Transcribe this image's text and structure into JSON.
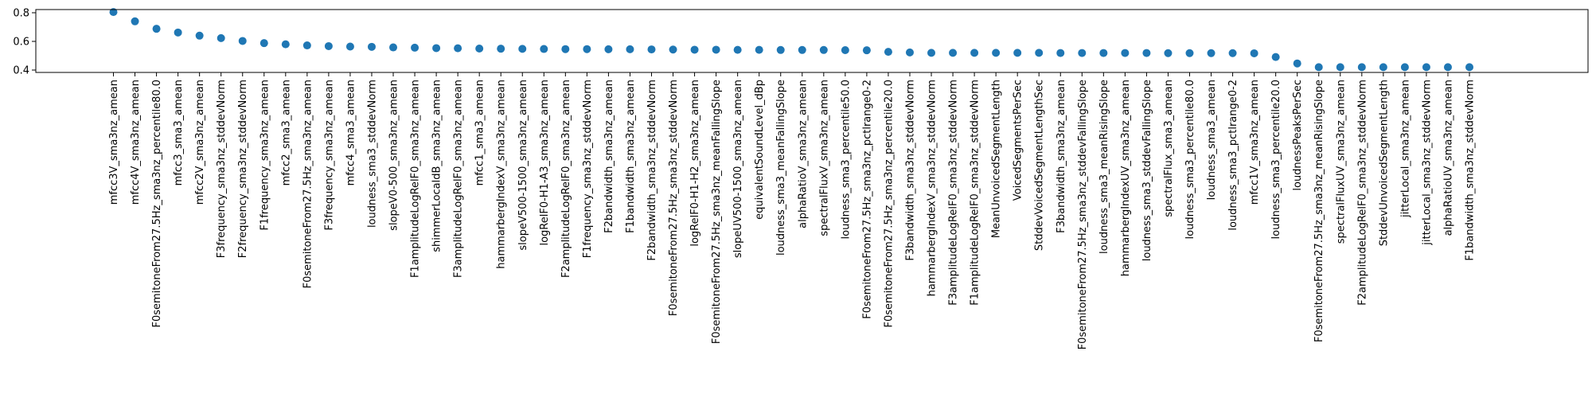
{
  "chart_data": {
    "type": "scatter",
    "title": "",
    "xlabel": "",
    "ylabel": "",
    "ylim": [
      0.4,
      0.82
    ],
    "yticks": [
      0.4,
      0.6,
      0.8
    ],
    "grid": false,
    "marker_color": "#1f77b4",
    "categories": [
      "mfcc3V_sma3nz_amean",
      "mfcc4V_sma3nz_amean",
      "F0semitoneFrom27.5Hz_sma3nz_percentile80.0",
      "mfcc3_sma3_amean",
      "mfcc2V_sma3nz_amean",
      "F3frequency_sma3nz_stddevNorm",
      "F2frequency_sma3nz_stddevNorm",
      "F1frequency_sma3nz_amean",
      "mfcc2_sma3_amean",
      "F0semitoneFrom27.5Hz_sma3nz_amean",
      "F3frequency_sma3nz_amean",
      "mfcc4_sma3_amean",
      "loudness_sma3_stddevNorm",
      "slopeV0-500_sma3nz_amean",
      "F1amplitudeLogRelF0_sma3nz_amean",
      "shimmerLocaldB_sma3nz_amean",
      "F3amplitudeLogRelF0_sma3nz_amean",
      "mfcc1_sma3_amean",
      "hammarbergIndexV_sma3nz_amean",
      "slopeV500-1500_sma3nz_amean",
      "logRelF0-H1-A3_sma3nz_amean",
      "F2amplitudeLogRelF0_sma3nz_amean",
      "F1frequency_sma3nz_stddevNorm",
      "F2bandwidth_sma3nz_amean",
      "F1bandwidth_sma3nz_amean",
      "F2bandwidth_sma3nz_stddevNorm",
      "F0semitoneFrom27.5Hz_sma3nz_stddevNorm",
      "logRelF0-H1-H2_sma3nz_amean",
      "F0semitoneFrom27.5Hz_sma3nz_meanFallingSlope",
      "slopeUV500-1500_sma3nz_amean",
      "equivalentSoundLevel_dBp",
      "loudness_sma3_meanFallingSlope",
      "alphaRatioV_sma3nz_amean",
      "spectralFluxV_sma3nz_amean",
      "loudness_sma3_percentile50.0",
      "F0semitoneFrom27.5Hz_sma3nz_pctlrange0-2",
      "F0semitoneFrom27.5Hz_sma3nz_percentile20.0",
      "F3bandwidth_sma3nz_stddevNorm",
      "hammarbergIndexV_sma3nz_stddevNorm",
      "F3amplitudeLogRelF0_sma3nz_stddevNorm",
      "F1amplitudeLogRelF0_sma3nz_stddevNorm",
      "MeanUnvoicedSegmentLength",
      "VoicedSegmentsPerSec",
      "StddevVoicedSegmentLengthSec",
      "F3bandwidth_sma3nz_amean",
      "F0semitoneFrom27.5Hz_sma3nz_stddevFallingSlope",
      "loudness_sma3_meanRisingSlope",
      "hammarbergIndexUV_sma3nz_amean",
      "loudness_sma3_stddevFallingSlope",
      "spectralFlux_sma3_amean",
      "loudness_sma3_percentile80.0",
      "loudness_sma3_amean",
      "loudness_sma3_pctlrange0-2",
      "mfcc1V_sma3nz_amean",
      "loudness_sma3_percentile20.0",
      "loudnessPeaksPerSec",
      "F0semitoneFrom27.5Hz_sma3nz_meanRisingSlope",
      "spectralFluxUV_sma3nz_amean",
      "F2amplitudeLogRelF0_sma3nz_stddevNorm",
      "StddevUnvoicedSegmentLength",
      "jitterLocal_sma3nz_amean",
      "jitterLocal_sma3nz_stddevNorm",
      "alphaRatioUV_sma3nz_amean",
      "F1bandwidth_sma3nz_stddevNorm"
    ],
    "values": [
      0.805,
      0.74,
      0.688,
      0.662,
      0.64,
      0.623,
      0.603,
      0.588,
      0.58,
      0.572,
      0.567,
      0.564,
      0.562,
      0.558,
      0.556,
      0.553,
      0.552,
      0.55,
      0.549,
      0.548,
      0.547,
      0.546,
      0.546,
      0.545,
      0.545,
      0.544,
      0.543,
      0.542,
      0.542,
      0.541,
      0.541,
      0.54,
      0.54,
      0.54,
      0.539,
      0.538,
      0.527,
      0.523,
      0.52,
      0.52,
      0.52,
      0.52,
      0.52,
      0.52,
      0.519,
      0.519,
      0.519,
      0.519,
      0.519,
      0.518,
      0.518,
      0.518,
      0.518,
      0.517,
      0.491,
      0.446,
      0.42,
      0.42,
      0.42,
      0.42,
      0.42,
      0.42,
      0.42,
      0.42
    ]
  }
}
